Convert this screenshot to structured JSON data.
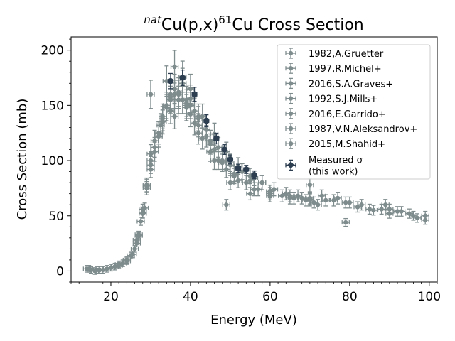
{
  "chart_data": {
    "type": "scatter",
    "title_prefix": "nat",
    "title_main": "Cu(p,x)",
    "title_super": "61",
    "title_suffix": "Cu Cross Section",
    "xlabel": "Energy (MeV)",
    "ylabel": "Cross Section (mb)",
    "xlim": [
      10,
      102
    ],
    "ylim": [
      -10,
      212
    ],
    "xticks": [
      20,
      40,
      60,
      80,
      100
    ],
    "yticks": [
      0,
      50,
      100,
      150,
      200
    ],
    "xtick_labels": [
      "20",
      "40",
      "60",
      "80",
      "100"
    ],
    "ytick_labels": [
      "0",
      "50",
      "100",
      "150",
      "200"
    ],
    "grid": false,
    "legend_position": "top-right",
    "colors": {
      "literature": "#7f8c8d",
      "measured": "#2c3e50"
    },
    "series": [
      {
        "name": "1982,A.Gruetter",
        "points": [
          [
            14,
            2
          ],
          [
            15,
            1
          ],
          [
            16,
            0
          ],
          [
            17,
            1
          ],
          [
            18,
            1
          ],
          [
            20,
            3
          ],
          [
            22,
            5
          ],
          [
            24,
            10
          ],
          [
            26,
            20
          ],
          [
            27,
            33
          ],
          [
            28,
            53
          ],
          [
            29,
            77
          ],
          [
            30,
            100
          ],
          [
            32,
            125
          ],
          [
            33,
            140
          ],
          [
            35,
            158
          ],
          [
            37,
            162
          ],
          [
            40,
            150
          ],
          [
            42,
            132
          ],
          [
            45,
            115
          ],
          [
            50,
            96
          ],
          [
            55,
            82
          ],
          [
            60,
            72
          ],
          [
            65,
            68
          ],
          [
            70,
            64
          ]
        ]
      },
      {
        "name": "1997,R.Michel+",
        "points": [
          [
            14.5,
            2
          ],
          [
            16.5,
            1
          ],
          [
            19,
            2
          ],
          [
            21,
            4
          ],
          [
            23,
            7
          ],
          [
            25,
            14
          ],
          [
            26.5,
            25
          ],
          [
            27.5,
            45
          ],
          [
            28.5,
            57
          ],
          [
            30,
            106
          ],
          [
            31,
            118
          ],
          [
            32.5,
            132
          ],
          [
            34,
            150
          ],
          [
            36,
            160
          ],
          [
            38,
            170
          ],
          [
            40,
            156
          ],
          [
            42,
            138
          ],
          [
            44,
            122
          ],
          [
            46,
            110
          ],
          [
            48,
            98
          ],
          [
            51,
            88
          ],
          [
            54,
            80
          ],
          [
            57,
            74
          ],
          [
            60,
            70
          ],
          [
            63,
            68
          ],
          [
            66,
            66
          ],
          [
            69,
            64
          ],
          [
            71,
            62
          ]
        ]
      },
      {
        "name": "2016,S.A.Graves+",
        "points": [
          [
            35,
            155
          ],
          [
            37,
            155
          ],
          [
            39,
            152
          ],
          [
            41,
            145
          ],
          [
            44,
            128
          ],
          [
            47,
            112
          ],
          [
            50,
            98
          ],
          [
            53,
            90
          ],
          [
            56,
            84
          ],
          [
            58,
            80
          ]
        ]
      },
      {
        "name": "1992,S.J.Mills+",
        "points": [
          [
            22,
            6
          ],
          [
            24,
            9
          ],
          [
            25.5,
            15
          ],
          [
            26.5,
            28
          ],
          [
            28,
            56
          ],
          [
            29,
            78
          ],
          [
            30,
            96
          ],
          [
            31,
            112
          ],
          [
            33,
            135
          ],
          [
            35,
            145
          ],
          [
            37,
            160
          ],
          [
            39,
            148
          ],
          [
            42,
            125
          ],
          [
            46,
            100
          ],
          [
            50,
            80
          ],
          [
            55,
            70
          ],
          [
            60,
            68
          ],
          [
            65,
            66
          ],
          [
            70,
            65
          ],
          [
            73,
            68
          ],
          [
            76,
            64
          ],
          [
            79,
            62
          ],
          [
            82,
            58
          ],
          [
            85,
            56
          ],
          [
            88,
            56
          ],
          [
            90,
            56
          ],
          [
            92,
            54
          ],
          [
            95,
            52
          ],
          [
            97,
            48
          ],
          [
            99,
            50
          ]
        ]
      },
      {
        "name": "2016,E.Garrido+",
        "points": [
          [
            30,
            160
          ],
          [
            34,
            172
          ],
          [
            36,
            185
          ],
          [
            38,
            176
          ],
          [
            40,
            165
          ],
          [
            43,
            140
          ],
          [
            46,
            124
          ],
          [
            49,
            108
          ],
          [
            52,
            95
          ],
          [
            55,
            86
          ],
          [
            58,
            80
          ],
          [
            61,
            74
          ],
          [
            64,
            70
          ],
          [
            67,
            68
          ],
          [
            70,
            66
          ]
        ]
      },
      {
        "name": "1987,V.N.Aleksandrov+",
        "points": [
          [
            27,
            32
          ],
          [
            28,
            52
          ],
          [
            29,
            75
          ],
          [
            30,
            92
          ],
          [
            31,
            108
          ],
          [
            32,
            122
          ],
          [
            33,
            138
          ],
          [
            34,
            148
          ],
          [
            35,
            160
          ],
          [
            36,
            165
          ],
          [
            37,
            160
          ],
          [
            38,
            155
          ],
          [
            39,
            150
          ],
          [
            40,
            142
          ],
          [
            41,
            134
          ],
          [
            43,
            120
          ],
          [
            45,
            108
          ],
          [
            47,
            100
          ],
          [
            49,
            92
          ],
          [
            51,
            86
          ]
        ]
      },
      {
        "name": "2015,M.Shahid+",
        "points": [
          [
            33,
            135
          ],
          [
            36,
            140
          ],
          [
            39,
            155
          ],
          [
            42,
            140
          ],
          [
            45,
            118
          ],
          [
            48,
            100
          ],
          [
            49,
            60
          ],
          [
            52,
            82
          ],
          [
            56,
            74
          ],
          [
            60,
            72
          ],
          [
            64,
            70
          ],
          [
            68,
            66
          ],
          [
            70,
            78
          ],
          [
            72,
            60
          ],
          [
            74,
            64
          ],
          [
            77,
            66
          ],
          [
            79,
            44
          ],
          [
            80,
            62
          ],
          [
            83,
            60
          ],
          [
            86,
            55
          ],
          [
            89,
            60
          ],
          [
            90,
            52
          ],
          [
            93,
            54
          ],
          [
            96,
            50
          ],
          [
            99,
            46
          ]
        ]
      }
    ],
    "measured": {
      "name_line1": "Measured σ",
      "name_line2": "(this work)",
      "points": [
        [
          35,
          172
        ],
        [
          38,
          175
        ],
        [
          41,
          160
        ],
        [
          44,
          136
        ],
        [
          46.5,
          120
        ],
        [
          48.5,
          110
        ],
        [
          50,
          101
        ],
        [
          52,
          93
        ],
        [
          54,
          92
        ],
        [
          56,
          87
        ]
      ]
    }
  }
}
